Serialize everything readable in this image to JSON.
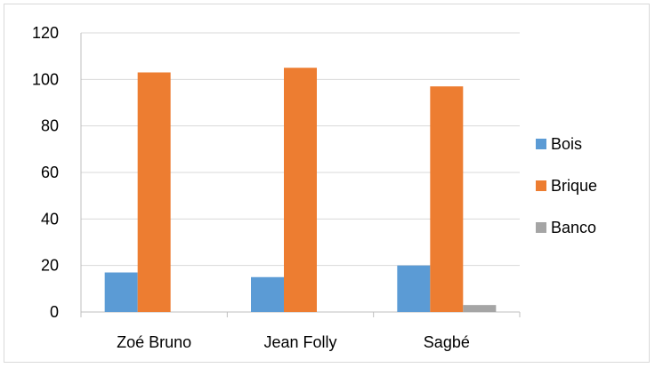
{
  "chart_data": {
    "type": "bar",
    "categories": [
      "Zoé Bruno",
      "Jean Folly",
      "Sagbé"
    ],
    "series": [
      {
        "name": "Bois",
        "values": [
          17,
          15,
          20
        ],
        "color": "#5b9bd5"
      },
      {
        "name": "Brique",
        "values": [
          103,
          105,
          97
        ],
        "color": "#ed7d31"
      },
      {
        "name": "Banco",
        "values": [
          0,
          0,
          3
        ],
        "color": "#a5a5a5"
      }
    ],
    "ylim": [
      0,
      120
    ],
    "yticks": [
      0,
      20,
      40,
      60,
      80,
      100,
      120
    ],
    "grid": true,
    "legend_position": "right"
  }
}
